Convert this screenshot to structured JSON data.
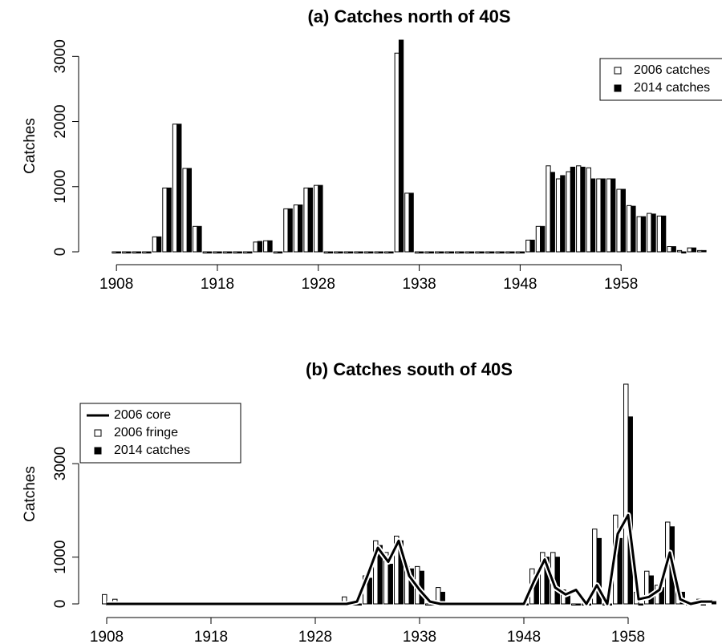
{
  "chart_data": [
    {
      "type": "bar",
      "title": "(a) Catches north of 40S",
      "y_label": "Catches",
      "legend": "topright",
      "x": [
        1908,
        1909,
        1910,
        1911,
        1912,
        1913,
        1914,
        1915,
        1916,
        1917,
        1918,
        1919,
        1920,
        1921,
        1922,
        1923,
        1924,
        1925,
        1926,
        1927,
        1928,
        1929,
        1930,
        1931,
        1932,
        1933,
        1934,
        1935,
        1936,
        1937,
        1938,
        1939,
        1940,
        1941,
        1942,
        1943,
        1944,
        1945,
        1946,
        1947,
        1948,
        1949,
        1950,
        1951,
        1952,
        1953,
        1954,
        1955,
        1956,
        1957,
        1958,
        1959,
        1960,
        1961,
        1962,
        1963,
        1964,
        1965,
        1966
      ],
      "series": [
        {
          "name": "2006 catches",
          "type": "bar",
          "color": "#ffffff",
          "values": [
            0,
            0,
            0,
            0,
            230,
            980,
            1960,
            1280,
            390,
            0,
            0,
            0,
            0,
            0,
            150,
            170,
            0,
            660,
            720,
            980,
            1020,
            0,
            0,
            0,
            0,
            0,
            0,
            0,
            3050,
            900,
            0,
            0,
            0,
            0,
            0,
            0,
            0,
            0,
            0,
            0,
            0,
            180,
            390,
            1320,
            1120,
            1230,
            1320,
            1290,
            1120,
            1120,
            960,
            710,
            540,
            590,
            550,
            80,
            20,
            60,
            20
          ]
        },
        {
          "name": "2014 catches",
          "type": "bar",
          "color": "#000000",
          "values": [
            0,
            0,
            0,
            0,
            230,
            980,
            1960,
            1280,
            390,
            0,
            0,
            0,
            0,
            0,
            160,
            170,
            0,
            660,
            720,
            980,
            1020,
            0,
            0,
            0,
            0,
            0,
            0,
            0,
            3250,
            900,
            0,
            0,
            0,
            0,
            0,
            0,
            0,
            0,
            0,
            0,
            0,
            180,
            390,
            1220,
            1170,
            1300,
            1300,
            1120,
            1120,
            1120,
            960,
            700,
            540,
            580,
            550,
            80,
            0,
            60,
            20
          ]
        }
      ],
      "xlim": [
        1906,
        1968
      ],
      "xticks": [
        1908,
        1918,
        1928,
        1938,
        1948,
        1958
      ],
      "ylim": [
        0,
        3250
      ],
      "yticks": [
        0,
        1000,
        2000,
        3000
      ]
    },
    {
      "type": "combo",
      "title": "(b) Catches south of 40S",
      "y_label": "Catches",
      "legend": "topleft",
      "x": [
        1908,
        1909,
        1910,
        1911,
        1912,
        1913,
        1914,
        1915,
        1916,
        1917,
        1918,
        1919,
        1920,
        1921,
        1922,
        1923,
        1924,
        1925,
        1926,
        1927,
        1928,
        1929,
        1930,
        1931,
        1932,
        1933,
        1934,
        1935,
        1936,
        1937,
        1938,
        1939,
        1940,
        1941,
        1942,
        1943,
        1944,
        1945,
        1946,
        1947,
        1948,
        1949,
        1950,
        1951,
        1952,
        1953,
        1954,
        1955,
        1956,
        1957,
        1958,
        1959,
        1960,
        1961,
        1962,
        1963,
        1964,
        1965,
        1966
      ],
      "series": [
        {
          "name": "2006 core",
          "type": "line",
          "color": "#000000",
          "values": [
            0,
            0,
            0,
            0,
            0,
            0,
            0,
            0,
            0,
            0,
            0,
            0,
            0,
            0,
            0,
            0,
            0,
            0,
            0,
            0,
            0,
            0,
            0,
            0,
            50,
            600,
            1200,
            900,
            1350,
            600,
            300,
            50,
            0,
            0,
            0,
            0,
            0,
            0,
            0,
            0,
            0,
            500,
            950,
            350,
            200,
            300,
            0,
            400,
            0,
            1500,
            1900,
            100,
            150,
            300,
            1100,
            100,
            0,
            50,
            50
          ]
        },
        {
          "name": "2006 fringe",
          "type": "bar",
          "color": "#ffffff",
          "values": [
            200,
            100,
            50,
            0,
            0,
            0,
            0,
            0,
            0,
            0,
            0,
            0,
            0,
            0,
            0,
            0,
            0,
            0,
            0,
            0,
            0,
            0,
            0,
            150,
            0,
            600,
            1350,
            1100,
            1450,
            800,
            800,
            0,
            350,
            0,
            0,
            0,
            0,
            0,
            0,
            0,
            0,
            750,
            1100,
            1100,
            300,
            0,
            0,
            1600,
            0,
            1900,
            4700,
            250,
            700,
            400,
            1750,
            300,
            0,
            100,
            80
          ]
        },
        {
          "name": "2014 catches",
          "type": "bar",
          "color": "#000000",
          "values": [
            0,
            0,
            0,
            0,
            0,
            0,
            0,
            0,
            0,
            0,
            0,
            0,
            0,
            0,
            0,
            0,
            0,
            0,
            0,
            0,
            0,
            0,
            0,
            0,
            0,
            550,
            1250,
            850,
            1350,
            750,
            700,
            0,
            250,
            0,
            0,
            0,
            0,
            0,
            0,
            0,
            0,
            650,
            1000,
            1000,
            250,
            0,
            0,
            1400,
            0,
            1400,
            4000,
            0,
            600,
            350,
            1650,
            250,
            0,
            0,
            50
          ]
        }
      ],
      "xlim": [
        1907,
        1967
      ],
      "xticks": [
        1908,
        1918,
        1928,
        1938,
        1948,
        1958
      ],
      "ylim": [
        0,
        4700
      ],
      "yticks": [
        0,
        1000,
        3000
      ]
    }
  ]
}
